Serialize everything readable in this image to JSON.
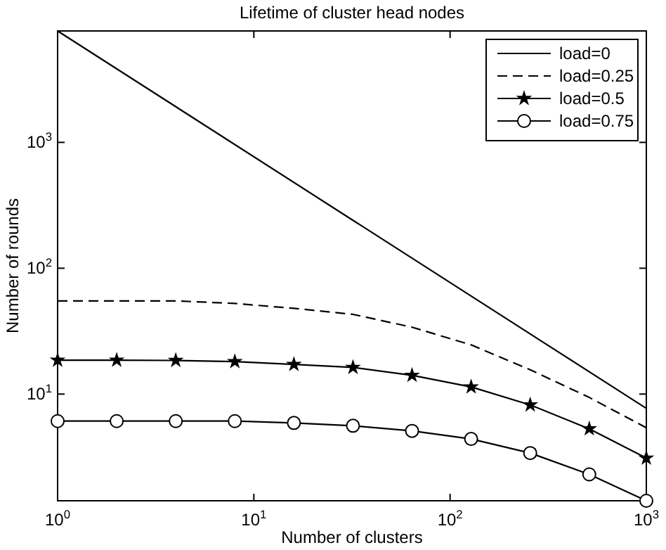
{
  "chart_data": {
    "type": "line",
    "title": "Lifetime of cluster head nodes",
    "xlabel": "Number of clusters",
    "ylabel": "Number of rounds",
    "log": "xy",
    "xlim": [
      1,
      1000
    ],
    "ylim": [
      1.42,
      7680
    ],
    "xticks": [
      {
        "value": 1,
        "label": "10$^{0}$"
      },
      {
        "value": 10,
        "label": "10$^{1}$"
      },
      {
        "value": 100,
        "label": "10$^{2}$"
      },
      {
        "value": 1000,
        "label": "10$^{3}$"
      }
    ],
    "yticks": [
      {
        "value": 10,
        "label": "10$^{1}$"
      },
      {
        "value": 100,
        "label": "10$^{2}$"
      },
      {
        "value": 1000,
        "label": "10$^{3}$"
      }
    ],
    "x": [
      1,
      2,
      4,
      8,
      16,
      32,
      64,
      128,
      256,
      512,
      1000
    ],
    "grid": false,
    "legend": "top right",
    "series": [
      {
        "name": "load=0",
        "color": "#000000",
        "line_style": "solid",
        "marker": "none",
        "x": [
          1,
          1000
        ],
        "values": [
          7680,
          7.7
        ]
      },
      {
        "name": "load=0.25",
        "color": "#000000",
        "line_style": "dashed",
        "marker": "none",
        "values": [
          55,
          55,
          55,
          52.5,
          48,
          43,
          34,
          24.6,
          15.6,
          9.4,
          5.4
        ]
      },
      {
        "name": "load=0.5",
        "color": "#000000",
        "line_style": "solid",
        "marker": "star",
        "values": [
          18.6,
          18.6,
          18.5,
          18.1,
          17.2,
          16.3,
          14.1,
          11.4,
          8.2,
          5.3,
          3.1
        ]
      },
      {
        "name": "load=0.75",
        "color": "#000000",
        "line_style": "solid",
        "marker": "circle",
        "values": [
          6.1,
          6.1,
          6.1,
          6.1,
          5.9,
          5.6,
          5.1,
          4.4,
          3.4,
          2.3,
          1.42
        ]
      }
    ]
  }
}
